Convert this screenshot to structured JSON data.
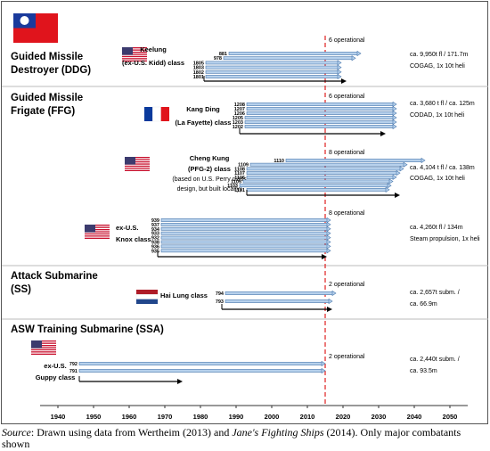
{
  "chart_data": {
    "type": "timeline",
    "xlim": [
      1935,
      2055
    ],
    "xticks": [
      1940,
      1950,
      1960,
      1970,
      1980,
      1990,
      2000,
      2010,
      2020,
      2030,
      2040,
      2050
    ],
    "marker": 2015,
    "groups": [
      {
        "title": [
          "Guided Missile",
          "Destroyer (DDG)"
        ],
        "classes": [
          {
            "name": [
              "Keelung",
              "(ex-U.S. Kidd) class"
            ],
            "operational": "6 operational",
            "specs": [
              "ca. 9,950t fl /  171.7m",
              "COGAG, 1x 10t heli"
            ],
            "span": [
              1981,
              2021
            ],
            "ships": [
              {
                "name": "881",
                "start": 1988,
                "end": 2025
              },
              {
                "name": "978",
                "start": 1986.5,
                "end": 2023.5
              },
              {
                "name": "1805",
                "start": 1981.5,
                "end": 2019.5
              },
              {
                "name": "1803",
                "start": 1981.5,
                "end": 2019.5
              },
              {
                "name": "1802",
                "start": 1981.5,
                "end": 2019.5
              },
              {
                "name": "1801",
                "start": 1981.5,
                "end": 2019.5
              }
            ]
          }
        ]
      },
      {
        "title": [
          "Guided Missile",
          "Frigate (FFG)"
        ],
        "classes": [
          {
            "name": [
              "Kang Ding",
              "(La Fayette) class"
            ],
            "operational": "6 operational",
            "specs": [
              "ca. 3,680 t fl / ca. 125m",
              "CODAD, 1x 10t heli"
            ],
            "span": [
              1991,
              2032
            ],
            "ships": [
              {
                "name": "1208",
                "start": 1993,
                "end": 2035
              },
              {
                "name": "1207",
                "start": 1993,
                "end": 2035
              },
              {
                "name": "1206",
                "start": 1993,
                "end": 2035
              },
              {
                "name": "1205",
                "start": 1992.5,
                "end": 2035
              },
              {
                "name": "1203",
                "start": 1992.5,
                "end": 2035
              },
              {
                "name": "1202",
                "start": 1992.5,
                "end": 2035
              }
            ]
          },
          {
            "name": [
              "Cheng Kung",
              "(PFG-2) class",
              "(based on U.S. Perry class",
              "design, but built locally)"
            ],
            "operational": "8 operational",
            "specs": [
              "ca. 4,104 t fl / ca. 138m",
              "COGAG, 1x 10t heli"
            ],
            "span": [
              1993,
              2036
            ],
            "ships": [
              {
                "name": "1110",
                "start": 2004,
                "end": 2043
              },
              {
                "name": "1109",
                "start": 1994,
                "end": 2038
              },
              {
                "name": "1108",
                "start": 1993,
                "end": 2037
              },
              {
                "name": "1107",
                "start": 1993,
                "end": 2036
              },
              {
                "name": "1106",
                "start": 1993,
                "end": 2035
              },
              {
                "name": "1105",
                "start": 1992,
                "end": 2034
              },
              {
                "name": "1103",
                "start": 1991,
                "end": 2033.5
              },
              {
                "name": "1101",
                "start": 1993,
                "end": 2033
              }
            ]
          },
          {
            "name": [
              "ex-U.S.",
              "Knox class"
            ],
            "operational": "8 operational",
            "specs": [
              "ca. 4,260t fl / 134m",
              "Steam propulsion, 1x heli"
            ],
            "span": [
              1968,
              2015.5
            ],
            "ships": [
              {
                "name": "939",
                "start": 1969,
                "end": 2016.5
              },
              {
                "name": "937",
                "start": 1969,
                "end": 2016.5
              },
              {
                "name": "934",
                "start": 1969,
                "end": 2016.5
              },
              {
                "name": "933",
                "start": 1969,
                "end": 2016.5
              },
              {
                "name": "932",
                "start": 1969,
                "end": 2016.5
              },
              {
                "name": "938",
                "start": 1969,
                "end": 2016.5
              },
              {
                "name": "936",
                "start": 1969,
                "end": 2016.5
              },
              {
                "name": "935",
                "start": 1969,
                "end": 2016.5
              }
            ]
          }
        ]
      },
      {
        "title": [
          "Attack Submarine",
          "(SS)"
        ],
        "classes": [
          {
            "name": [
              "Hai Lung class"
            ],
            "operational": "2 operational",
            "specs": [
              "ca. 2,657t subm. /",
              "ca. 66.9m"
            ],
            "span": [
              1986,
              2017
            ],
            "ships": [
              {
                "name": "794",
                "start": 1987,
                "end": 2018
              },
              {
                "name": "793",
                "start": 1987,
                "end": 2017
              }
            ]
          }
        ]
      },
      {
        "title": [
          "ASW Training Submarine (SSA)"
        ],
        "classes": [
          {
            "name": [
              "ex-U.S.",
              "Guppy class"
            ],
            "operational": "2 operational",
            "specs": [
              "ca. 2,440t subm. /",
              "ca. 93.5m"
            ],
            "span": [
              1946,
              1975
            ],
            "ships": [
              {
                "name": "792",
                "start": 1946,
                "end": 2015
              },
              {
                "name": "791",
                "start": 1946,
                "end": 2015
              }
            ]
          }
        ]
      }
    ],
    "caption": {
      "lead": "Source",
      "text1": ": Drawn using data from Wertheim (2013) and ",
      "italic": "Jane's Fighting Ships",
      "text2": " (2014). Only major combatants shown"
    }
  }
}
